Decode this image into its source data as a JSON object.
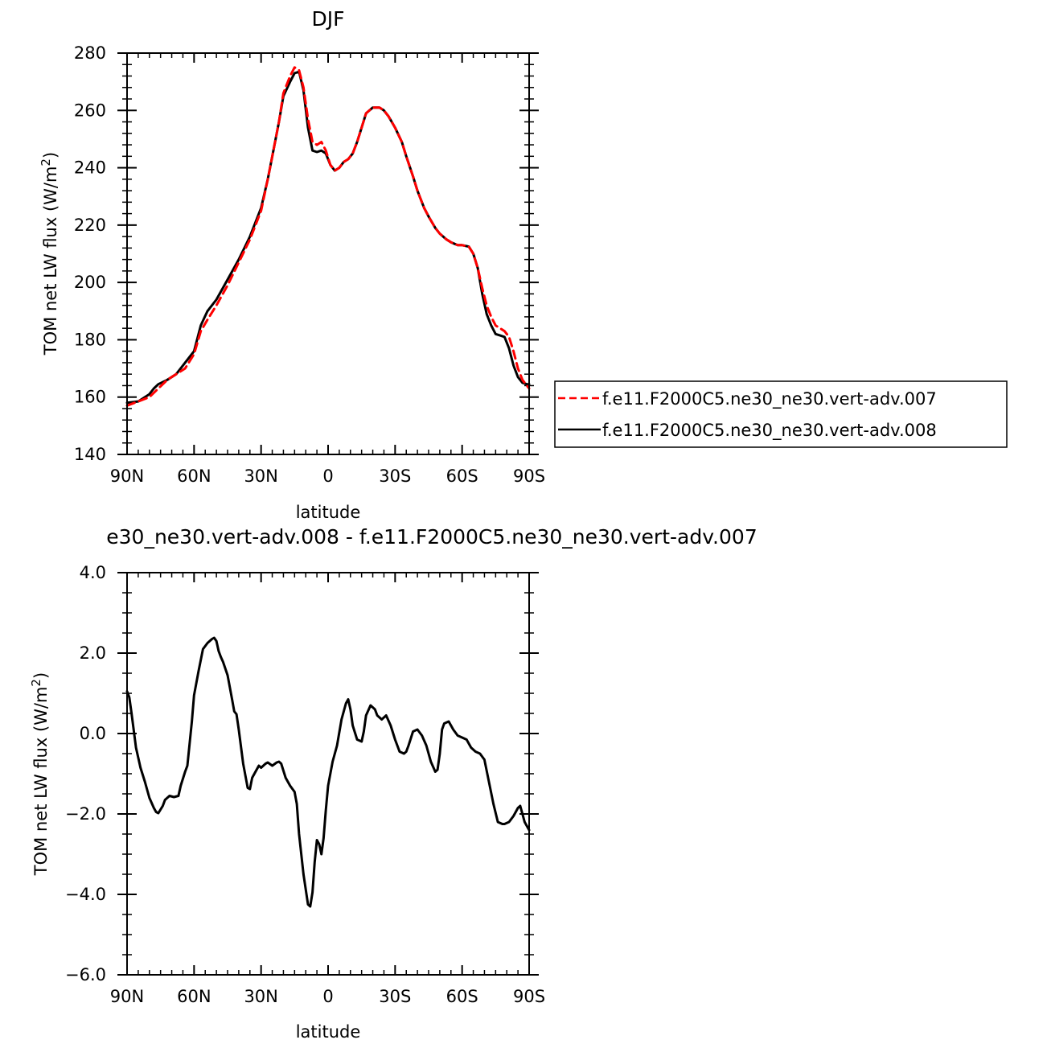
{
  "chart_data": [
    {
      "type": "line",
      "title": "DJF",
      "xlabel": "latitude",
      "ylabel": "TOM net LW flux (W/m²)",
      "ylabel_parts": {
        "main": "TOM net LW flux (W/m",
        "sup": "2",
        "end": ")"
      },
      "xlim": [
        -90,
        90
      ],
      "ylim": [
        140,
        280
      ],
      "x_direction": "north-to-south",
      "x_ticks": [
        {
          "value": -90,
          "label": "90N"
        },
        {
          "value": -60,
          "label": "60N"
        },
        {
          "value": -30,
          "label": "30N"
        },
        {
          "value": 0,
          "label": "0"
        },
        {
          "value": 30,
          "label": "30S"
        },
        {
          "value": 60,
          "label": "60S"
        },
        {
          "value": 90,
          "label": "90S"
        }
      ],
      "y_ticks": [
        {
          "value": 140,
          "label": "140"
        },
        {
          "value": 160,
          "label": "160"
        },
        {
          "value": 180,
          "label": "180"
        },
        {
          "value": 200,
          "label": "200"
        },
        {
          "value": 220,
          "label": "220"
        },
        {
          "value": 240,
          "label": "240"
        },
        {
          "value": 260,
          "label": "260"
        },
        {
          "value": 280,
          "label": "280"
        }
      ],
      "legend_position": "right",
      "series": [
        {
          "name": "f.e11.F2000C5.ne30_ne30.vert-adv.007",
          "color": "#ff0000",
          "dash": "dashed",
          "x": [
            -90,
            -85,
            -80,
            -76,
            -72,
            -68,
            -64,
            -60,
            -57,
            -54,
            -50,
            -45,
            -40,
            -35,
            -30,
            -27,
            -25,
            -22,
            -20,
            -17,
            -15,
            -13,
            -11,
            -9,
            -7,
            -5,
            -3,
            -1,
            1,
            3,
            5,
            7,
            9,
            11,
            13,
            15,
            17,
            20,
            23,
            25,
            27,
            30,
            33,
            35,
            38,
            40,
            43,
            45,
            48,
            50,
            53,
            55,
            58,
            60,
            63,
            65,
            67,
            69,
            71,
            73,
            75,
            77,
            79,
            81,
            83,
            85,
            87,
            89,
            90
          ],
          "y": [
            157,
            158.5,
            160,
            163,
            166,
            168,
            170,
            175,
            183,
            187,
            192,
            199,
            207,
            215,
            225,
            236,
            244,
            256,
            266,
            272,
            275,
            274,
            268,
            257,
            249,
            248,
            249,
            246,
            241,
            239,
            240,
            242,
            243,
            245,
            249,
            254,
            259,
            261,
            261,
            260,
            258,
            254,
            249,
            244,
            237,
            232,
            226,
            223,
            219,
            217,
            215,
            214,
            213,
            213,
            212.5,
            210,
            205,
            198,
            192,
            188,
            185,
            184,
            183,
            181,
            176,
            170,
            166,
            164,
            163
          ]
        },
        {
          "name": "f.e11.F2000C5.ne30_ne30.vert-adv.008",
          "color": "#000000",
          "dash": "solid",
          "x": [
            -90,
            -85,
            -82,
            -80,
            -78,
            -76,
            -72,
            -68,
            -64,
            -60,
            -57,
            -54,
            -50,
            -45,
            -40,
            -35,
            -30,
            -27,
            -25,
            -22,
            -20,
            -17,
            -15,
            -13,
            -11,
            -9,
            -7,
            -5,
            -3,
            -1,
            1,
            3,
            5,
            7,
            9,
            11,
            13,
            15,
            17,
            20,
            23,
            25,
            27,
            30,
            33,
            35,
            38,
            40,
            43,
            45,
            48,
            50,
            53,
            55,
            58,
            60,
            63,
            65,
            67,
            69,
            71,
            73,
            75,
            77,
            79,
            81,
            83,
            85,
            87,
            89,
            90
          ],
          "y": [
            158,
            158.5,
            160,
            161,
            163,
            164.5,
            166,
            168,
            172,
            176,
            185,
            190,
            194,
            201,
            208,
            216,
            226,
            236,
            244,
            256,
            265,
            270,
            273,
            273.5,
            267,
            254,
            246,
            245.5,
            246,
            245,
            241,
            239,
            240,
            242,
            243,
            245,
            249,
            254,
            259,
            261,
            261,
            260,
            258,
            254,
            249,
            244,
            237,
            232,
            226,
            223,
            219,
            217,
            215,
            214,
            213,
            213,
            212.5,
            210,
            205,
            196,
            189,
            185,
            182,
            181.5,
            181,
            177,
            171,
            167,
            165,
            164.5,
            164.5
          ]
        }
      ]
    },
    {
      "type": "line",
      "title": "e30_ne30.vert-adv.008 - f.e11.F2000C5.ne30_ne30.vert-adv.007",
      "xlabel": "latitude",
      "ylabel": "TOM net LW flux (W/m²)",
      "ylabel_parts": {
        "main": "TOM net LW flux (W/m",
        "sup": "2",
        "end": ")"
      },
      "xlim": [
        -90,
        90
      ],
      "ylim": [
        -6,
        4
      ],
      "x_direction": "north-to-south",
      "x_ticks": [
        {
          "value": -90,
          "label": "90N"
        },
        {
          "value": -60,
          "label": "60N"
        },
        {
          "value": -30,
          "label": "30N"
        },
        {
          "value": 0,
          "label": "0"
        },
        {
          "value": 30,
          "label": "30S"
        },
        {
          "value": 60,
          "label": "60S"
        },
        {
          "value": 90,
          "label": "90S"
        }
      ],
      "y_ticks": [
        {
          "value": -6,
          "label": "−6.0"
        },
        {
          "value": -4,
          "label": "−4.0"
        },
        {
          "value": -2,
          "label": "−2.0"
        },
        {
          "value": 0,
          "label": "0.0"
        },
        {
          "value": 2,
          "label": "2.0"
        },
        {
          "value": 4,
          "label": "4.0"
        }
      ],
      "series": [
        {
          "name": "",
          "color": "#000000",
          "dash": "solid",
          "x": [
            -90,
            -89,
            -88,
            -86,
            -84,
            -82,
            -80,
            -78,
            -77,
            -76,
            -74,
            -73,
            -71,
            -69,
            -67,
            -66,
            -64,
            -63,
            -61,
            -60,
            -58,
            -56,
            -54,
            -52,
            -51,
            -50,
            -49,
            -48,
            -47,
            -45,
            -43,
            -42,
            -41,
            -40,
            -38,
            -36,
            -35,
            -34,
            -32,
            -31,
            -30,
            -28,
            -27,
            -25,
            -23,
            -22,
            -21,
            -19,
            -17,
            -15,
            -14,
            -13,
            -11,
            -9,
            -8,
            -7,
            -6,
            -5,
            -4,
            -3,
            -2,
            -1,
            0,
            2,
            4,
            6,
            8,
            9,
            10,
            11,
            13,
            15,
            16,
            17,
            19,
            21,
            22,
            24,
            26,
            28,
            30,
            32,
            34,
            35,
            36,
            38,
            40,
            42,
            44,
            46,
            48,
            49,
            50,
            51,
            52,
            54,
            56,
            58,
            60,
            62,
            64,
            66,
            68,
            70,
            72,
            74,
            76,
            78,
            79,
            81,
            83,
            85,
            86,
            87,
            88,
            90
          ],
          "y": [
            1.05,
            0.9,
            0.5,
            -0.35,
            -0.85,
            -1.2,
            -1.6,
            -1.85,
            -1.95,
            -1.98,
            -1.8,
            -1.65,
            -1.55,
            -1.58,
            -1.55,
            -1.3,
            -0.95,
            -0.8,
            0.3,
            0.95,
            1.55,
            2.1,
            2.25,
            2.35,
            2.38,
            2.3,
            2.05,
            1.9,
            1.78,
            1.45,
            0.85,
            0.55,
            0.48,
            0.1,
            -0.75,
            -1.35,
            -1.38,
            -1.1,
            -0.9,
            -0.8,
            -0.85,
            -0.75,
            -0.72,
            -0.8,
            -0.72,
            -0.7,
            -0.75,
            -1.1,
            -1.3,
            -1.45,
            -1.75,
            -2.5,
            -3.5,
            -4.25,
            -4.3,
            -3.95,
            -3.2,
            -2.65,
            -2.75,
            -3.0,
            -2.6,
            -1.9,
            -1.3,
            -0.7,
            -0.3,
            0.35,
            0.75,
            0.85,
            0.6,
            0.2,
            -0.15,
            -0.2,
            0.05,
            0.45,
            0.7,
            0.6,
            0.45,
            0.35,
            0.45,
            0.2,
            -0.15,
            -0.45,
            -0.5,
            -0.45,
            -0.3,
            0.05,
            0.1,
            -0.05,
            -0.3,
            -0.7,
            -0.95,
            -0.9,
            -0.5,
            0.1,
            0.25,
            0.3,
            0.1,
            -0.05,
            -0.1,
            -0.15,
            -0.35,
            -0.45,
            -0.5,
            -0.65,
            -1.2,
            -1.75,
            -2.2,
            -2.25,
            -2.25,
            -2.2,
            -2.05,
            -1.85,
            -1.8,
            -2.0,
            -2.2,
            -2.4
          ]
        }
      ]
    }
  ]
}
